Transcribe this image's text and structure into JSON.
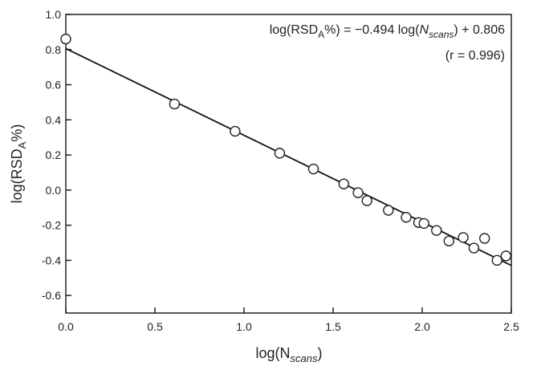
{
  "chart_data": {
    "type": "scatter",
    "xlabel_main": "log(N",
    "xlabel_sub": "scans",
    "xlabel_end": ")",
    "ylabel_main": "log(RSD",
    "ylabel_sub": "A",
    "ylabel_end": "%)",
    "xlim": [
      0.0,
      2.5
    ],
    "ylim": [
      -0.7,
      1.0
    ],
    "xticks": [
      "0.0",
      "0.5",
      "1.0",
      "1.5",
      "2.0",
      "2.5"
    ],
    "yticks": [
      "1.0",
      "0.8",
      "0.6",
      "0.4",
      "0.2",
      "0.0",
      "-0.2",
      "-0.4",
      "-0.6"
    ],
    "grid": false,
    "points": [
      {
        "x": 0.0,
        "y": 0.86
      },
      {
        "x": 0.61,
        "y": 0.49
      },
      {
        "x": 0.95,
        "y": 0.335
      },
      {
        "x": 1.2,
        "y": 0.21
      },
      {
        "x": 1.39,
        "y": 0.12
      },
      {
        "x": 1.56,
        "y": 0.035
      },
      {
        "x": 1.64,
        "y": -0.015
      },
      {
        "x": 1.69,
        "y": -0.06
      },
      {
        "x": 1.81,
        "y": -0.115
      },
      {
        "x": 1.91,
        "y": -0.155
      },
      {
        "x": 1.98,
        "y": -0.185
      },
      {
        "x": 2.01,
        "y": -0.19
      },
      {
        "x": 2.08,
        "y": -0.23
      },
      {
        "x": 2.15,
        "y": -0.29
      },
      {
        "x": 2.23,
        "y": -0.27
      },
      {
        "x": 2.29,
        "y": -0.33
      },
      {
        "x": 2.35,
        "y": -0.275
      },
      {
        "x": 2.42,
        "y": -0.4
      },
      {
        "x": 2.47,
        "y": -0.375
      }
    ],
    "fit": {
      "slope": -0.494,
      "intercept": 0.806
    },
    "annotation": {
      "line1_a": "log(RSD",
      "line1_sub": "A",
      "line1_b": "%) = −0.494 log(",
      "line1_n": "N",
      "line1_nsub": "scans",
      "line1_c": ") + 0.806",
      "line2": "(r = 0.996)"
    }
  }
}
